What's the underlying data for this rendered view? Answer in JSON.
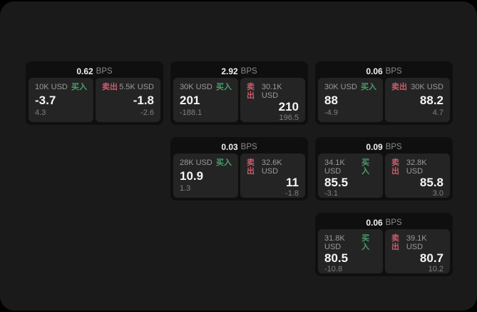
{
  "theme": {
    "window_bg": "#1a1a1a",
    "card_bg": "#0f0f0f",
    "panel_bg": "#242424",
    "buy_color": "#4a9e6b",
    "sell_color": "#c95c6e"
  },
  "labels": {
    "bps_unit": "BPS",
    "buy": "买入",
    "sell": "卖出"
  },
  "cards": [
    {
      "bps": "0.62",
      "grid": {
        "row": 1,
        "col": 1
      },
      "buy": {
        "amount": "10K USD",
        "value": "-3.7",
        "delta": "4.3"
      },
      "sell": {
        "amount": "5.5K USD",
        "value": "-1.8",
        "delta": "-2.6"
      }
    },
    {
      "bps": "2.92",
      "grid": {
        "row": 1,
        "col": 2
      },
      "buy": {
        "amount": "30K USD",
        "value": "201",
        "delta": "-188.1"
      },
      "sell": {
        "amount": "30.1K USD",
        "value": "210",
        "delta": "196.5"
      }
    },
    {
      "bps": "0.06",
      "grid": {
        "row": 1,
        "col": 3
      },
      "buy": {
        "amount": "30K USD",
        "value": "88",
        "delta": "-4.9"
      },
      "sell": {
        "amount": "30K USD",
        "value": "88.2",
        "delta": "4.7"
      }
    },
    {
      "bps": "0.03",
      "grid": {
        "row": 2,
        "col": 2
      },
      "buy": {
        "amount": "28K USD",
        "value": "10.9",
        "delta": "1.3"
      },
      "sell": {
        "amount": "32.6K USD",
        "value": "11",
        "delta": "-1.8"
      }
    },
    {
      "bps": "0.09",
      "grid": {
        "row": 2,
        "col": 3
      },
      "buy": {
        "amount": "34.1K USD",
        "value": "85.5",
        "delta": "-3.1"
      },
      "sell": {
        "amount": "32.8K USD",
        "value": "85.8",
        "delta": "3.0"
      }
    },
    {
      "bps": "0.06",
      "grid": {
        "row": 3,
        "col": 3
      },
      "buy": {
        "amount": "31.8K USD",
        "value": "80.5",
        "delta": "-10.8"
      },
      "sell": {
        "amount": "39.1K USD",
        "value": "80.7",
        "delta": "10.2"
      }
    }
  ]
}
